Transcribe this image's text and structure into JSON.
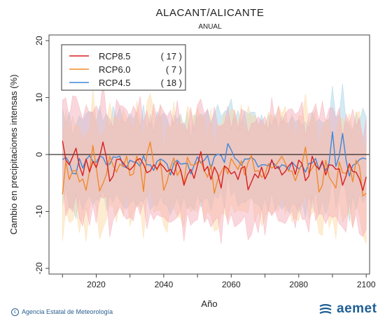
{
  "header": {
    "title": "ALACANT/ALICANTE",
    "subtitle": "ANUAL"
  },
  "footer": {
    "credit": "Agencia Estatal de Meteorología",
    "logo_text": "aemet"
  },
  "colors": {
    "rcp85": "#d62020",
    "rcp60": "#f08a2c",
    "rcp45": "#3f88d8",
    "band85": "#f4a7b3",
    "band60": "#fcd59c",
    "band45": "#9fd0e4"
  },
  "chart_data": {
    "type": "line",
    "title": "ALACANT/ALICANTE",
    "subtitle": "ANUAL",
    "xlabel": "Año",
    "ylabel": "Cambio en precipitaciones intensas (%)",
    "xlim": [
      2006,
      2101
    ],
    "ylim": [
      -21,
      21
    ],
    "xticks": [
      2020,
      2040,
      2060,
      2080,
      2100
    ],
    "yticks": [
      -20,
      -10,
      0,
      10,
      20
    ],
    "reference_line": 0,
    "legend": {
      "position": "top-left"
    },
    "x": [
      2010,
      2011,
      2012,
      2013,
      2014,
      2015,
      2016,
      2017,
      2018,
      2019,
      2020,
      2021,
      2022,
      2023,
      2024,
      2025,
      2026,
      2027,
      2028,
      2029,
      2030,
      2031,
      2032,
      2033,
      2034,
      2035,
      2036,
      2037,
      2038,
      2039,
      2040,
      2041,
      2042,
      2043,
      2044,
      2045,
      2046,
      2047,
      2048,
      2049,
      2050,
      2051,
      2052,
      2053,
      2054,
      2055,
      2056,
      2057,
      2058,
      2059,
      2060,
      2061,
      2062,
      2063,
      2064,
      2065,
      2066,
      2067,
      2068,
      2069,
      2070,
      2071,
      2072,
      2073,
      2074,
      2075,
      2076,
      2077,
      2078,
      2079,
      2080,
      2081,
      2082,
      2083,
      2084,
      2085,
      2086,
      2087,
      2088,
      2089,
      2090,
      2091,
      2092,
      2093,
      2094,
      2095,
      2096,
      2097,
      2098,
      2099,
      2100
    ],
    "series": [
      {
        "name": "RCP8.5",
        "count": "( 17 )",
        "color": "#d62020",
        "band_color": "#f4a7b3",
        "values": [
          2.4,
          -1.0,
          -1.8,
          -0.4,
          1.1,
          -2.0,
          -3.7,
          -0.8,
          -3.1,
          -1.2,
          -2.3,
          -0.4,
          2.2,
          -0.5,
          -4.7,
          -3.8,
          -0.9,
          -0.8,
          -1.5,
          -2.3,
          -2.7,
          -2.1,
          -1.0,
          -0.7,
          -1.7,
          -3.2,
          -2.9,
          -1.8,
          -2.5,
          -1.6,
          -2.2,
          -3.0,
          -2.6,
          -3.6,
          -1.3,
          -2.7,
          -5.4,
          -3.6,
          -2.6,
          -4.2,
          -1.9,
          0.5,
          -2.9,
          -2.1,
          -4.4,
          -2.2,
          -3.4,
          -5.9,
          -2.0,
          -2.5,
          -3.4,
          -3.0,
          -4.4,
          -2.4,
          -2.1,
          -6.2,
          -4.8,
          -3.4,
          -4.1,
          -2.2,
          -4.3,
          -3.1,
          -0.9,
          -2.5,
          -2.1,
          -3.6,
          -3.0,
          -2.0,
          -1.4,
          -3.5,
          -1.0,
          -1.6,
          -4.6,
          -3.8,
          -0.3,
          -1.9,
          -2.6,
          -1.1,
          -3.6,
          -1.8,
          -1.9,
          -2.6,
          -2.5,
          -5.4,
          -3.8,
          -1.6,
          -3.0,
          -3.1,
          -4.3,
          -6.3,
          -3.9
        ]
      },
      {
        "name": "RCP6.0",
        "count": "( 7 )",
        "color": "#f08a2c",
        "band_color": "#fcd59c",
        "values": [
          -7.0,
          -1.2,
          -4.4,
          -2.9,
          -2.8,
          -4.8,
          -4.3,
          -6.3,
          -2.9,
          1.6,
          -2.3,
          -6.4,
          -5.1,
          -3.5,
          -0.3,
          -1.9,
          -3.1,
          -1.7,
          -2.1,
          -0.3,
          -3.7,
          -3.4,
          -0.3,
          -1.7,
          -6.5,
          0.0,
          2.2,
          -1.6,
          -2.8,
          -1.0,
          -6.3,
          -4.7,
          -2.2,
          -0.6,
          -3.7,
          -2.6,
          -5.0,
          -0.5,
          -1.8,
          -1.9,
          -1.4,
          -1.2,
          -2.8,
          -4.0,
          -1.8,
          -6.8,
          -4.4,
          -3.1,
          -2.0,
          -3.4,
          -0.7,
          -1.7,
          -2.6,
          -1.1,
          -3.6,
          -1.4,
          -0.2,
          -3.0,
          -2.8,
          -4.0,
          -3.5,
          -1.6,
          -2.4,
          -2.0,
          -1.2,
          -0.3,
          -1.5,
          -2.9,
          -2.9,
          -4.6,
          -2.9,
          -1.5,
          1.3,
          -3.3,
          -2.4,
          -1.4,
          -6.6,
          -5.4,
          -1.0,
          -3.9,
          -4.9,
          -5.9,
          -1.3,
          -3.2,
          -3.3,
          -1.9,
          -4.8,
          -1.0,
          -2.1,
          -7.3,
          -6.8
        ]
      },
      {
        "name": "RCP4.5",
        "count": "( 18 )",
        "color": "#3f88d8",
        "band_color": "#9fd0e4",
        "values": [
          -0.9,
          -0.5,
          -1.4,
          -3.3,
          -3.4,
          -0.7,
          -2.4,
          -0.9,
          -0.2,
          -1.2,
          -1.4,
          -0.3,
          -0.5,
          -1.8,
          -1.7,
          -0.4,
          -0.5,
          -0.3,
          -2.1,
          -2.3,
          -1.0,
          -1.3,
          -1.4,
          -2.1,
          -0.2,
          -1.8,
          -1.8,
          -2.8,
          -1.2,
          -0.8,
          -1.1,
          -1.7,
          -3.6,
          -1.5,
          -1.0,
          -1.7,
          -1.6,
          -1.5,
          -3.4,
          -1.9,
          -0.4,
          -1.5,
          -1.0,
          -0.2,
          -2.5,
          -0.4,
          0.1,
          -0.2,
          -1.4,
          1.9,
          0.8,
          -0.6,
          -1.1,
          -1.9,
          -0.8,
          -0.8,
          -0.5,
          -1.0,
          -2.2,
          -1.8,
          -1.8,
          -2.0,
          -1.2,
          -1.8,
          -2.5,
          -1.8,
          -2.0,
          -2.8,
          -1.3,
          -2.0,
          -2.5,
          -1.9,
          -3.1,
          -1.6,
          -1.5,
          -0.7,
          -2.7,
          -1.5,
          -2.8,
          -1.5,
          4.0,
          -2.1,
          -0.3,
          3.7,
          -0.9,
          -3.8,
          -1.9,
          -1.6,
          -0.9,
          -0.6,
          -0.8
        ]
      }
    ]
  }
}
